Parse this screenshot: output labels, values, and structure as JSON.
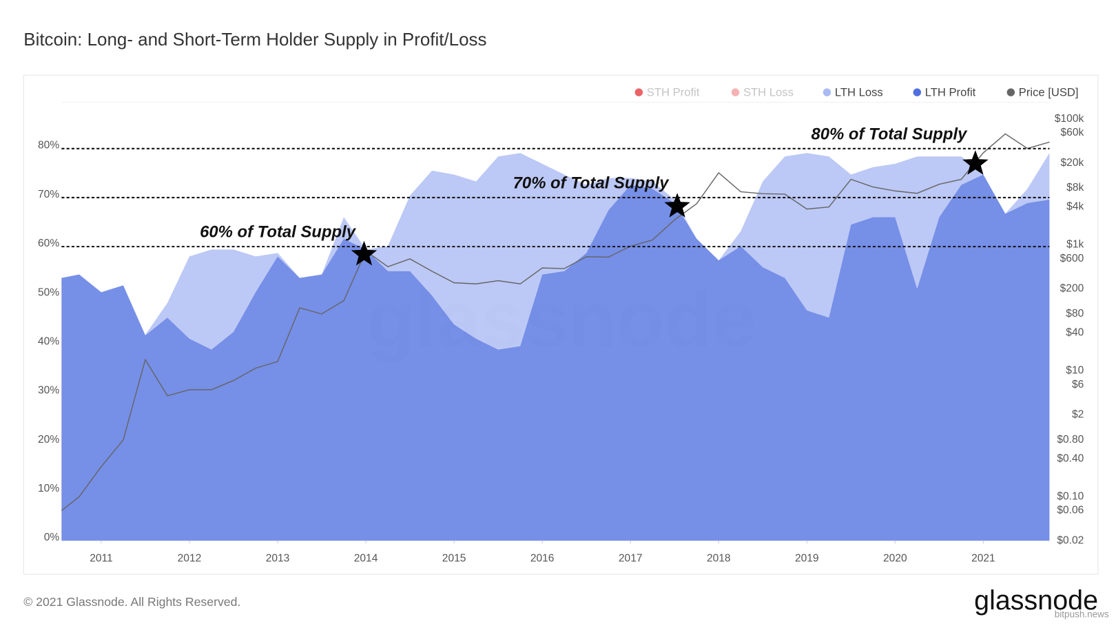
{
  "chart_data": {
    "type": "stacked-area",
    "title": "Bitcoin: Long- and Short-Term Holder Supply in Profit/Loss",
    "footer": "© 2021 Glassnode. All Rights Reserved.",
    "logo": "glassnode",
    "watermark": "glassnode",
    "source_watermark": "bitpush.news",
    "x": [
      2010.55,
      2010.75,
      2011.0,
      2011.25,
      2011.5,
      2011.75,
      2012.0,
      2012.25,
      2012.5,
      2012.75,
      2013.0,
      2013.25,
      2013.5,
      2013.75,
      2014.0,
      2014.25,
      2014.5,
      2014.75,
      2015.0,
      2015.25,
      2015.5,
      2015.75,
      2016.0,
      2016.25,
      2016.5,
      2016.75,
      2017.0,
      2017.25,
      2017.5,
      2017.75,
      2018.0,
      2018.25,
      2018.5,
      2018.75,
      2019.0,
      2019.25,
      2019.5,
      2019.75,
      2020.0,
      2020.25,
      2020.5,
      2020.75,
      2021.0,
      2021.25,
      2021.5,
      2021.75
    ],
    "xlim": [
      2010.55,
      2021.75
    ],
    "xticks": [
      2011,
      2012,
      2013,
      2014,
      2015,
      2016,
      2017,
      2018,
      2019,
      2020,
      2021
    ],
    "ylim": [
      0,
      89
    ],
    "yticks": [
      {
        "value": 0,
        "label": "0%"
      },
      {
        "value": 10,
        "label": "10%"
      },
      {
        "value": 20,
        "label": "20%"
      },
      {
        "value": 30,
        "label": "30%"
      },
      {
        "value": 40,
        "label": "40%"
      },
      {
        "value": 50,
        "label": "50%"
      },
      {
        "value": 60,
        "label": "60%"
      },
      {
        "value": 70,
        "label": "70%"
      },
      {
        "value": 80,
        "label": "80%"
      }
    ],
    "y2lim": [
      0.02,
      170000
    ],
    "y2scale": "log",
    "y2ticks": [
      {
        "value": 100000,
        "label": "$100k"
      },
      {
        "value": 60000,
        "label": "$60k"
      },
      {
        "value": 20000,
        "label": "$20k"
      },
      {
        "value": 8000,
        "label": "$8k"
      },
      {
        "value": 4000,
        "label": "$4k"
      },
      {
        "value": 1000,
        "label": "$1k"
      },
      {
        "value": 600,
        "label": "$600"
      },
      {
        "value": 200,
        "label": "$200"
      },
      {
        "value": 80,
        "label": "$80"
      },
      {
        "value": 40,
        "label": "$40"
      },
      {
        "value": 10,
        "label": "$10"
      },
      {
        "value": 6,
        "label": "$6"
      },
      {
        "value": 2,
        "label": "$2"
      },
      {
        "value": 0.8,
        "label": "$0.80"
      },
      {
        "value": 0.4,
        "label": "$0.40"
      },
      {
        "value": 0.1,
        "label": "$0.10"
      },
      {
        "value": 0.06,
        "label": "$0.06"
      },
      {
        "value": 0.02,
        "label": "$0.02"
      }
    ],
    "legend": "top-right",
    "series": [
      {
        "name": "STH Profit",
        "color": "#e5484d",
        "visible": false
      },
      {
        "name": "STH Loss",
        "color": "#f4a3a6",
        "visible": false
      },
      {
        "name": "LTH Loss",
        "color": "#a9b9f2",
        "kind": "area",
        "values": [
          0,
          0,
          0,
          0,
          0.1,
          3.0,
          16.8,
          20.4,
          16.8,
          7.3,
          0.7,
          0,
          0,
          4.4,
          0,
          5.1,
          15.4,
          25.5,
          30.6,
          32.1,
          39.4,
          39.4,
          22.6,
          19.7,
          13.9,
          6.6,
          1.4,
          1.5,
          0.7,
          0,
          0,
          3.0,
          17.5,
          24.8,
          32.1,
          32.9,
          10.2,
          10.2,
          10.9,
          27.0,
          12.4,
          5.8,
          0,
          0,
          2.9,
          9.5
        ]
      },
      {
        "name": "LTH Profit",
        "color": "#4f6fe0",
        "kind": "area",
        "values": [
          53.6,
          54.3,
          50.7,
          52.1,
          41.9,
          45.5,
          41.2,
          39.0,
          42.6,
          50.7,
          58.0,
          53.6,
          54.3,
          61.6,
          59.4,
          55.0,
          55.0,
          50.0,
          44.1,
          41.2,
          39.0,
          39.7,
          54.3,
          55.0,
          58.7,
          67.4,
          72.6,
          71.8,
          68.9,
          61.6,
          57.2,
          60.1,
          55.8,
          53.6,
          47.0,
          45.5,
          64.5,
          66.0,
          66.0,
          51.4,
          66.0,
          72.6,
          74.7,
          66.7,
          68.9,
          69.6
        ]
      },
      {
        "name": "Price [USD]",
        "color": "#666666",
        "kind": "line",
        "axis": "y2",
        "values": [
          0.06,
          0.1,
          0.3,
          0.8,
          15,
          4,
          5,
          5,
          7,
          11,
          14,
          100,
          80,
          130,
          800,
          450,
          600,
          380,
          250,
          240,
          270,
          240,
          430,
          420,
          650,
          640,
          950,
          1200,
          2500,
          4500,
          14000,
          7000,
          6500,
          6400,
          3700,
          4000,
          11000,
          8300,
          7200,
          6600,
          9200,
          11000,
          29000,
          58000,
          34000,
          43000
        ]
      }
    ],
    "annotations": [
      {
        "text": "60% of Total Supply",
        "line": 60,
        "x": 2013.98,
        "y": 58.4
      },
      {
        "text": "70% of Total Supply",
        "line": 70,
        "x": 2017.53,
        "y": 68.2
      },
      {
        "text": "80% of Total Supply",
        "line": 80,
        "x": 2020.91,
        "y": 76.9
      }
    ]
  }
}
